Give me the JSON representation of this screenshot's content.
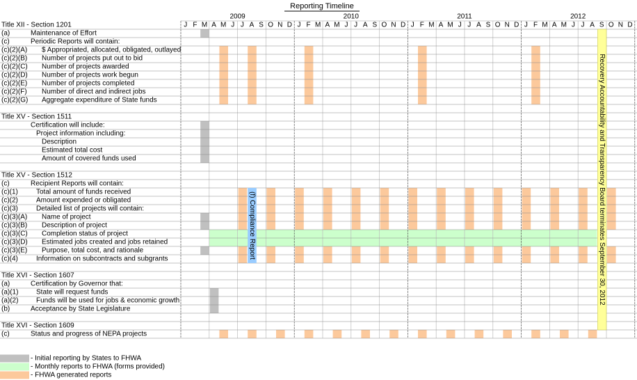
{
  "title": "Reporting Timeline",
  "years": [
    "2009",
    "2010",
    "2011",
    "2012"
  ],
  "months": [
    "J",
    "F",
    "M",
    "A",
    "M",
    "J",
    "J",
    "A",
    "S",
    "O",
    "N",
    "D"
  ],
  "sections": [
    {
      "heading": "Title XII - Section 1201",
      "items": [
        {
          "code": "(a)",
          "label": "Maintenance of Effort",
          "initial": [
            2
          ]
        },
        {
          "code": "(c)",
          "label": "Periodic Reports will contain:"
        },
        {
          "code": "(c)(2)(A)",
          "label": "$ Appropriated, allocated, obligated, outlayed",
          "fhwa": [
            4,
            7,
            13,
            25,
            37
          ]
        },
        {
          "code": "(c)(2)(B)",
          "label": "Number of projects put out to bid",
          "fhwa": [
            4,
            7,
            13,
            25,
            37
          ]
        },
        {
          "code": "(c)(2)(C)",
          "label": "Number of projects awarded",
          "fhwa": [
            4,
            7,
            13,
            25,
            37
          ]
        },
        {
          "code": "(c)(2)(D)",
          "label": "Number of projects work begun",
          "fhwa": [
            4,
            7,
            13,
            25,
            37
          ]
        },
        {
          "code": "(c)(2)(E)",
          "label": "Number of projects completed",
          "fhwa": [
            4,
            7,
            13,
            25,
            37
          ]
        },
        {
          "code": "(c)(2)(F)",
          "label": "Number of direct and indirect jobs",
          "fhwa": [
            4,
            7,
            13,
            25,
            37
          ]
        },
        {
          "code": "(c)(2)(G)",
          "label": "Aggregate expenditure of State funds",
          "fhwa": [
            4,
            7,
            13,
            25,
            37
          ]
        }
      ]
    },
    {
      "heading": "Title XV - Section 1511",
      "items": [
        {
          "label": "Certification will include:",
          "initial": [
            2
          ]
        },
        {
          "label": "Project information including:",
          "initial": [
            2
          ]
        },
        {
          "label": "Description",
          "initial": [
            2
          ]
        },
        {
          "label": "Estimated total cost",
          "initial": [
            2
          ]
        },
        {
          "label": "Amount of covered funds used",
          "initial": [
            2
          ]
        }
      ]
    },
    {
      "heading": "Title XV - Section 1512",
      "compliance": {
        "label": "(f) Compliance Report",
        "month": 7
      },
      "items": [
        {
          "code": "(c)",
          "label": "Recipient Reports will contain:"
        },
        {
          "code": "(c)(1)",
          "label": "Total amount of funds received",
          "fhwa": [
            6,
            9,
            12,
            15,
            18,
            21,
            24,
            27,
            30,
            33,
            36,
            39,
            42,
            45
          ]
        },
        {
          "code": "(c)(2)",
          "label": "Amount expended or obligated",
          "fhwa": [
            6,
            9,
            12,
            15,
            18,
            21,
            24,
            27,
            30,
            33,
            36,
            39,
            42,
            45
          ]
        },
        {
          "code": "(c)(3)",
          "label": "Detailed list of projects will contain:",
          "fhwa": [
            6,
            9,
            12,
            15,
            18,
            21,
            24,
            27,
            30,
            33,
            36,
            39,
            42,
            45
          ]
        },
        {
          "code": "(c)(3)(A)",
          "label": "Name of project",
          "initial": [
            2
          ],
          "fhwa": [
            6,
            9,
            12,
            15,
            18,
            21,
            24,
            27,
            30,
            33,
            36,
            39,
            42,
            45
          ]
        },
        {
          "code": "(c)(3)(B)",
          "label": "Description of project",
          "initial": [
            2
          ],
          "fhwa": [
            6,
            9,
            12,
            15,
            18,
            21,
            24,
            27,
            30,
            33,
            36,
            39,
            42,
            45
          ]
        },
        {
          "code": "(c)(3)(C)",
          "label": "Completion status of project",
          "monthly": [
            3,
            43
          ]
        },
        {
          "code": "(c)(3)(D)",
          "label": "Estimated jobs created and jobs retained",
          "monthly": [
            3,
            43
          ]
        },
        {
          "code": "(c)(3)(E)",
          "label": "Purpose, total cost, and rationale",
          "initial": [
            2
          ],
          "fhwa": [
            6,
            9,
            12,
            15,
            18,
            21,
            24,
            27,
            30,
            33,
            36,
            39,
            42,
            45
          ]
        },
        {
          "code": "(c)(4)",
          "label": "Information on subcontracts and subgrants",
          "fhwa": [
            6,
            9,
            12,
            15,
            18,
            21,
            24,
            27,
            30,
            33,
            36,
            39,
            42,
            45
          ]
        }
      ]
    },
    {
      "heading": "Title XVI - Section 1607",
      "items": [
        {
          "code": "(a)",
          "label": "Certification by Governor that:"
        },
        {
          "code": "(a)(1)",
          "label": "State will request funds",
          "initial": [
            3
          ]
        },
        {
          "code": "(a)(2)",
          "label": "Funds will be used for jobs & economic growth",
          "initial": [
            3
          ]
        },
        {
          "code": "(b)",
          "label": "Acceptance by State Legislature",
          "initial": [
            3
          ]
        }
      ]
    },
    {
      "heading": "Title XVI - Section 1609",
      "items": [
        {
          "code": "(c)",
          "label": "Status and progress of NEPA projects",
          "fhwa": [
            4,
            7,
            10,
            13,
            16,
            19,
            22,
            25,
            28,
            31,
            34,
            37,
            40,
            43
          ]
        }
      ]
    }
  ],
  "termination": {
    "label": "Recovery Accountability and Transparency Board terminates September 30, 2012",
    "month": 44
  },
  "legend": [
    {
      "label": "- Initial reporting by States to FHWA",
      "color": "#c0c0c0"
    },
    {
      "label": "- Monthly reports to FHWA (forms provided)",
      "color": "#ccffcc"
    },
    {
      "label": "- FHWA generated reports",
      "color": "#fcc99c"
    }
  ]
}
